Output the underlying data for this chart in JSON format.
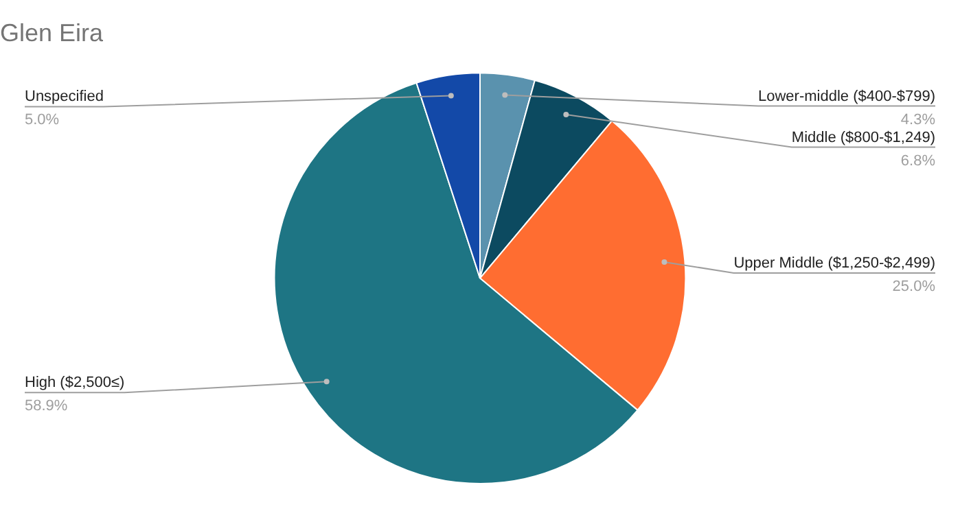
{
  "chart_data": {
    "type": "pie",
    "title": "Glen Eira",
    "categories": [
      "Lower-middle ($400-$799)",
      "Middle ($800-$1,249)",
      "Upper Middle ($1,250-$2,499)",
      "High ($2,500≤)",
      "Unspecified"
    ],
    "values": [
      4.3,
      6.8,
      25.0,
      58.9,
      5.0
    ],
    "value_labels": [
      "4.3%",
      "6.8%",
      "25.0%",
      "58.9%",
      "5.0%"
    ],
    "colors": [
      "#5a92ae",
      "#0c4a60",
      "#ff6d31",
      "#1e7584",
      "#1349a8"
    ],
    "legend": false
  }
}
